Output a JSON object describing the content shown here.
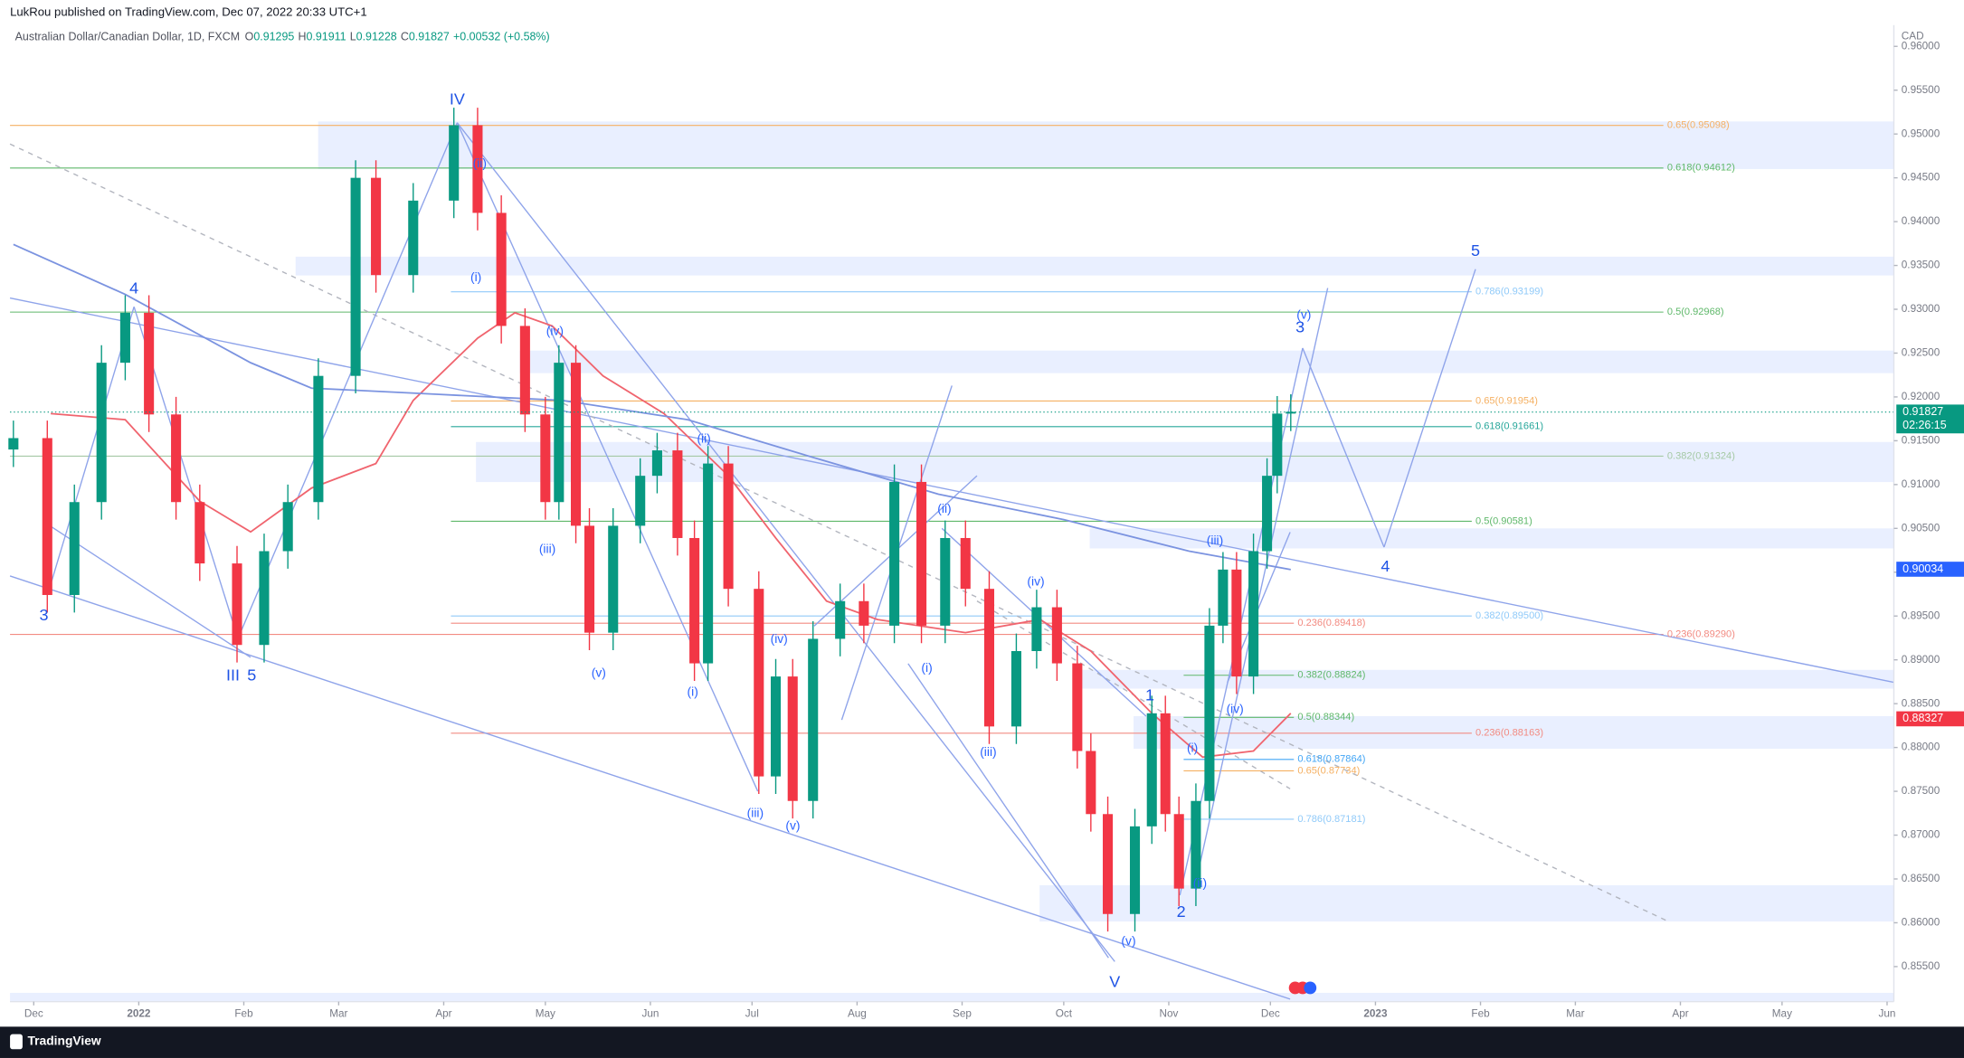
{
  "header": {
    "publisher": "LukRou published on TradingView.com, Dec 07, 2022 20:33 UTC+1",
    "symbol": "Australian Dollar/Canadian Dollar, 1D, FXCM",
    "ohlc": [
      {
        "key": "O",
        "value": 0.91295
      },
      {
        "key": "H",
        "value": 0.91911
      },
      {
        "key": "L",
        "value": 0.91228
      },
      {
        "key": "C",
        "value": 0.91827
      }
    ],
    "change": "+0.00532 (+0.58%)"
  },
  "footer": {
    "brand": "TradingView"
  },
  "chart_data": {
    "type": "candlestick",
    "currency": "CAD",
    "up_color": "#089981",
    "down_color": "#f23645",
    "x": [
      -6,
      4,
      12,
      20,
      27,
      34,
      42,
      49,
      60,
      68,
      75,
      84,
      95,
      101,
      112,
      124,
      131,
      138,
      145,
      151,
      155,
      160,
      164,
      171,
      179,
      184,
      190,
      195,
      199,
      205,
      214,
      219,
      224,
      230,
      238,
      245,
      254,
      262,
      269,
      275,
      282,
      290,
      296,
      302,
      308,
      312,
      317,
      325,
      330,
      334,
      338,
      343,
      347,
      351,
      355,
      360,
      364,
      367,
      371
    ],
    "open": [
      0.914,
      0.9153,
      0.8974,
      0.908,
      0.9239,
      0.9296,
      0.918,
      0.908,
      0.901,
      0.8917,
      0.9024,
      0.908,
      0.9224,
      0.945,
      0.9339,
      0.9424,
      0.951,
      0.941,
      0.9281,
      0.918,
      0.908,
      0.9239,
      0.9053,
      0.8931,
      0.9053,
      0.911,
      0.9139,
      0.9039,
      0.8896,
      0.9124,
      0.8981,
      0.8767,
      0.8881,
      0.8739,
      0.8924,
      0.8967,
      0.8939,
      0.9103,
      0.8939,
      0.9039,
      0.8981,
      0.8824,
      0.891,
      0.896,
      0.8896,
      0.8796,
      0.8724,
      0.861,
      0.871,
      0.8839,
      0.8724,
      0.8639,
      0.8739,
      0.8939,
      0.9003,
      0.8881,
      0.9024,
      0.911,
      0.9181
    ],
    "high": [
      0.9173,
      0.9173,
      0.91,
      0.9259,
      0.9316,
      0.9316,
      0.92,
      0.91,
      0.903,
      0.9044,
      0.91,
      0.9244,
      0.947,
      0.947,
      0.9444,
      0.953,
      0.953,
      0.943,
      0.9301,
      0.92,
      0.9259,
      0.9259,
      0.9073,
      0.9073,
      0.913,
      0.9159,
      0.9159,
      0.9059,
      0.9144,
      0.9144,
      0.9001,
      0.8901,
      0.8901,
      0.8944,
      0.8987,
      0.8987,
      0.9123,
      0.9123,
      0.9059,
      0.9059,
      0.9001,
      0.893,
      0.898,
      0.898,
      0.8916,
      0.8816,
      0.8744,
      0.873,
      0.8859,
      0.8859,
      0.8744,
      0.8759,
      0.8959,
      0.9023,
      0.9023,
      0.9044,
      0.913,
      0.9201,
      0.9203
    ],
    "low": [
      0.912,
      0.8954,
      0.8954,
      0.906,
      0.9219,
      0.916,
      0.906,
      0.899,
      0.8897,
      0.8897,
      0.9004,
      0.906,
      0.9204,
      0.9319,
      0.9319,
      0.9404,
      0.939,
      0.9261,
      0.916,
      0.906,
      0.906,
      0.9033,
      0.8911,
      0.8911,
      0.9033,
      0.909,
      0.9019,
      0.8876,
      0.8876,
      0.8961,
      0.8747,
      0.8747,
      0.8719,
      0.8719,
      0.8904,
      0.8919,
      0.8919,
      0.8919,
      0.8919,
      0.8961,
      0.8804,
      0.8804,
      0.889,
      0.8876,
      0.8776,
      0.8704,
      0.859,
      0.859,
      0.869,
      0.8704,
      0.8619,
      0.8619,
      0.8719,
      0.8919,
      0.8861,
      0.8861,
      0.9004,
      0.909,
      0.9161
    ],
    "close": [
      0.9153,
      0.8974,
      0.908,
      0.9239,
      0.9296,
      0.918,
      0.908,
      0.901,
      0.8917,
      0.9024,
      0.908,
      0.9224,
      0.945,
      0.9339,
      0.9424,
      0.951,
      0.941,
      0.9281,
      0.918,
      0.908,
      0.9239,
      0.9053,
      0.8931,
      0.9053,
      0.911,
      0.9139,
      0.9039,
      0.8896,
      0.9124,
      0.8981,
      0.8767,
      0.8881,
      0.8739,
      0.8924,
      0.8967,
      0.8939,
      0.9103,
      0.8939,
      0.9039,
      0.8981,
      0.8824,
      0.891,
      0.896,
      0.8896,
      0.8796,
      0.8724,
      0.861,
      0.871,
      0.8839,
      0.8724,
      0.8639,
      0.8739,
      0.8939,
      0.9003,
      0.8881,
      0.9024,
      0.911,
      0.9181,
      0.9183
    ],
    "lines": [
      {
        "color": "#f0646e",
        "x": [
          5,
          27,
          49,
          64,
          82,
          101,
          112,
          131,
          142,
          153,
          168,
          186,
          205,
          219,
          234,
          249,
          275,
          297,
          312,
          330,
          345,
          360,
          371
        ],
        "values": [
          0.9181,
          0.9174,
          0.9081,
          0.9046,
          0.9096,
          0.9124,
          0.9196,
          0.9267,
          0.9296,
          0.9281,
          0.9224,
          0.9181,
          0.911,
          0.9039,
          0.8967,
          0.8946,
          0.8931,
          0.8946,
          0.891,
          0.8839,
          0.8789,
          0.8796,
          0.8839
        ],
        "last": 0.88327
      },
      {
        "color": "#7b93e0",
        "x": [
          -6,
          27,
          64,
          82,
          119,
          156,
          193,
          230,
          267,
          304,
          341,
          371
        ],
        "values": [
          0.9374,
          0.9317,
          0.9239,
          0.921,
          0.9203,
          0.9196,
          0.9174,
          0.9131,
          0.9089,
          0.906,
          0.9024,
          0.9003
        ],
        "last": 0.90034
      }
    ],
    "last_price": 0.91827,
    "countdown": "02:26:15",
    "levels": [
      {
        "value": 0.95098,
        "label": "0.65(0.95098)",
        "color": "#f5b062"
      },
      {
        "value": 0.94612,
        "label": "0.618(0.94612)",
        "color": "#5fb86a"
      },
      {
        "value": 0.93199,
        "label": "0.786(0.93199)",
        "color": "#90caf9"
      },
      {
        "value": 0.92968,
        "label": "0.5(0.92968)",
        "color": "#5fb86a"
      },
      {
        "value": 0.91954,
        "label": "0.65(0.91954)",
        "color": "#f5b062"
      },
      {
        "value": 0.91661,
        "label": "0.618(0.91661)",
        "color": "#26a69a"
      },
      {
        "value": 0.91324,
        "label": "0.382(0.91324)",
        "color": "#a5c9a5"
      },
      {
        "value": 0.90581,
        "label": "0.5(0.90581)",
        "color": "#5fb86a"
      },
      {
        "value": 0.895,
        "label": "0.382(0.89500)",
        "color": "#90caf9"
      },
      {
        "value": 0.89418,
        "label": "0.236(0.89418)",
        "color": "#f28b82"
      },
      {
        "value": 0.8929,
        "label": "0.236(0.89290)",
        "color": "#f28b82"
      },
      {
        "value": 0.88824,
        "label": "0.382(0.88824)",
        "color": "#5fb86a"
      },
      {
        "value": 0.88344,
        "label": "0.5(0.88344)",
        "color": "#5fb86a"
      },
      {
        "value": 0.88163,
        "label": "0.236(0.88163)",
        "color": "#f28b82"
      },
      {
        "value": 0.87864,
        "label": "0.618(0.87864)",
        "color": "#42a5f5"
      },
      {
        "value": 0.87734,
        "label": "0.65(0.87734)",
        "color": "#f5b062"
      },
      {
        "value": 0.87181,
        "label": "0.786(0.87181)",
        "color": "#90caf9"
      }
    ],
    "annotations": [
      "IV",
      "(ii)",
      "(i)",
      "(iv)",
      "(iii)",
      "(v)",
      "(ii)",
      "(i)",
      "(iv)",
      "(iii)",
      "(v)",
      "(ii)",
      "(i)",
      "(iii)",
      "(iv)",
      "(v)",
      "V",
      "1",
      "2",
      "(i)",
      "(ii)",
      "(iii)",
      "(iv)",
      "(v)",
      "3",
      "4",
      "5",
      "3",
      "4",
      "III",
      "5"
    ],
    "xlim": [
      -7,
      549
    ],
    "ylim": [
      0.851,
      0.96243
    ],
    "xticks": [
      {
        "value": 0,
        "label": "Dec"
      },
      {
        "value": 31,
        "label": "2022"
      },
      {
        "value": 62,
        "label": "Feb"
      },
      {
        "value": 90,
        "label": "Mar"
      },
      {
        "value": 121,
        "label": "Apr"
      },
      {
        "value": 151,
        "label": "May"
      },
      {
        "value": 182,
        "label": "Jun"
      },
      {
        "value": 212,
        "label": "Jul"
      },
      {
        "value": 243,
        "label": "Aug"
      },
      {
        "value": 274,
        "label": "Sep"
      },
      {
        "value": 304,
        "label": "Oct"
      },
      {
        "value": 335,
        "label": "Nov"
      },
      {
        "value": 365,
        "label": "Dec"
      },
      {
        "value": 396,
        "label": "2023"
      },
      {
        "value": 427,
        "label": "Feb"
      },
      {
        "value": 455,
        "label": "Mar"
      },
      {
        "value": 486,
        "label": "Apr"
      },
      {
        "value": 516,
        "label": "May"
      },
      {
        "value": 547,
        "label": "Jun"
      }
    ],
    "yticks": [
      {
        "value": 0.855,
        "label": "0.85500"
      },
      {
        "value": 0.86,
        "label": "0.86000"
      },
      {
        "value": 0.865,
        "label": "0.86500"
      },
      {
        "value": 0.87,
        "label": "0.87000"
      },
      {
        "value": 0.875,
        "label": "0.87500"
      },
      {
        "value": 0.88,
        "label": "0.88000"
      },
      {
        "value": 0.885,
        "label": "0.88500"
      },
      {
        "value": 0.89,
        "label": "0.89000"
      },
      {
        "value": 0.895,
        "label": "0.89500"
      },
      {
        "value": 0.9,
        "label": "0.90000"
      },
      {
        "value": 0.905,
        "label": "0.90500"
      },
      {
        "value": 0.91,
        "label": "0.91000"
      },
      {
        "value": 0.915,
        "label": "0.91500"
      },
      {
        "value": 0.92,
        "label": "0.92000"
      },
      {
        "value": 0.925,
        "label": "0.92500"
      },
      {
        "value": 0.93,
        "label": "0.93000"
      },
      {
        "value": 0.935,
        "label": "0.93500"
      },
      {
        "value": 0.94,
        "label": "0.94000"
      },
      {
        "value": 0.945,
        "label": "0.94500"
      },
      {
        "value": 0.95,
        "label": "0.95000"
      },
      {
        "value": 0.955,
        "label": "0.95500"
      },
      {
        "value": 0.96,
        "label": "0.96000"
      }
    ]
  }
}
